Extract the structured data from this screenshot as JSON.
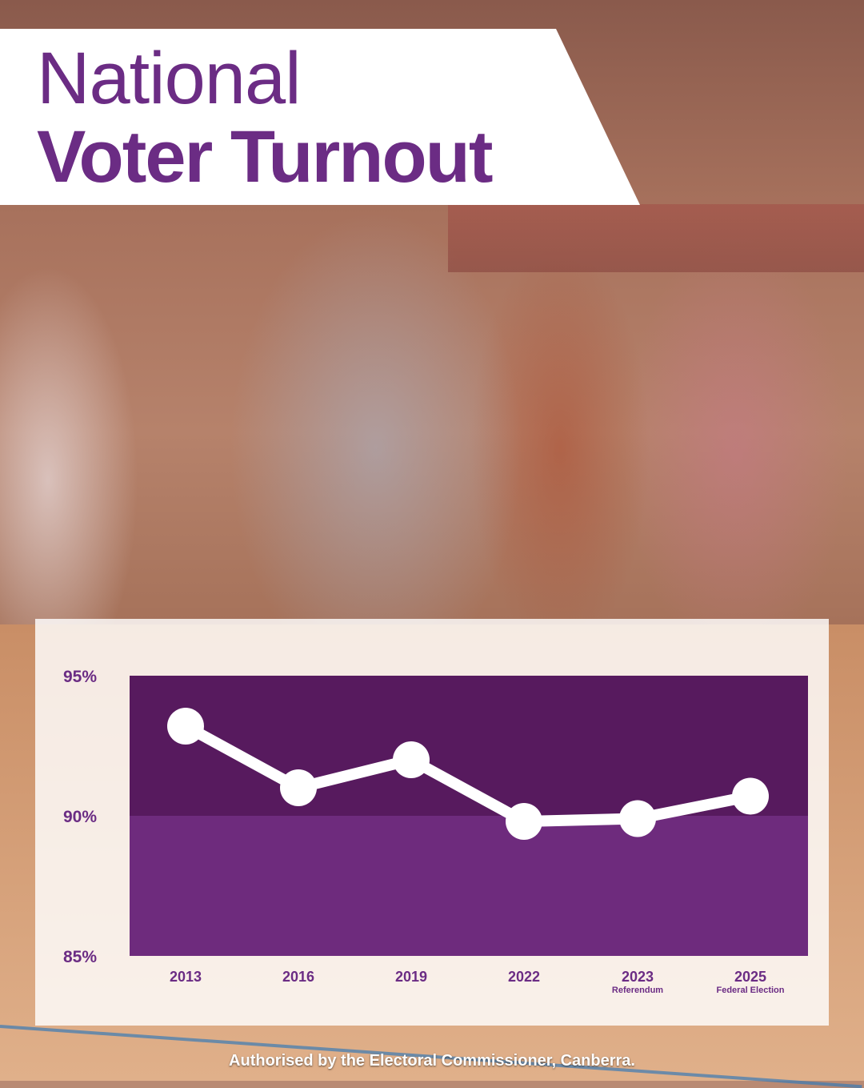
{
  "title": {
    "line1": "National",
    "line2": "Voter Turnout"
  },
  "footer": "Authorised by the Electoral Commissioner, Canberra.",
  "colors": {
    "brand_purple": "#6b2c84",
    "upper_band": "#571a5e",
    "lower_band": "#6e2b7d",
    "line": "#ffffff"
  },
  "chart_data": {
    "type": "line",
    "categories": [
      "2013",
      "2016",
      "2019",
      "2022",
      "2023",
      "2025"
    ],
    "category_sublabels": [
      "",
      "",
      "",
      "",
      "Referendum",
      "Federal Election"
    ],
    "values": [
      93.2,
      91.0,
      92.0,
      89.8,
      89.9,
      90.7
    ],
    "ylim": [
      85,
      95
    ],
    "yticks": [
      85,
      90,
      95
    ],
    "ytick_labels": [
      "85%",
      "90%",
      "95%"
    ],
    "band_split": 90,
    "title": "",
    "xlabel": "",
    "ylabel": "",
    "grid": false
  }
}
